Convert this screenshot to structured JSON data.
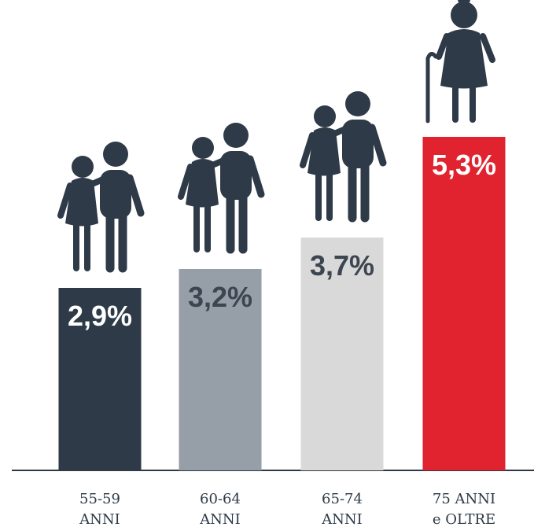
{
  "chart_data": {
    "type": "bar",
    "categories": [
      [
        "55-59",
        "ANNI"
      ],
      [
        "60-64",
        "ANNI"
      ],
      [
        "65-74",
        "ANNI"
      ],
      [
        "75 ANNI",
        "e OLTRE"
      ]
    ],
    "values": [
      2.9,
      3.2,
      3.7,
      5.3
    ],
    "value_labels": [
      "2,9%",
      "3,2%",
      "3,7%",
      "5,3%"
    ],
    "colors": [
      "#2e3a47",
      "#969ea8",
      "#d9d9d9",
      "#e0232f"
    ],
    "label_colors": [
      "#ffffff",
      "#3d4650",
      "#3d4650",
      "#ffffff"
    ],
    "ylim": [
      0,
      5.5
    ]
  }
}
